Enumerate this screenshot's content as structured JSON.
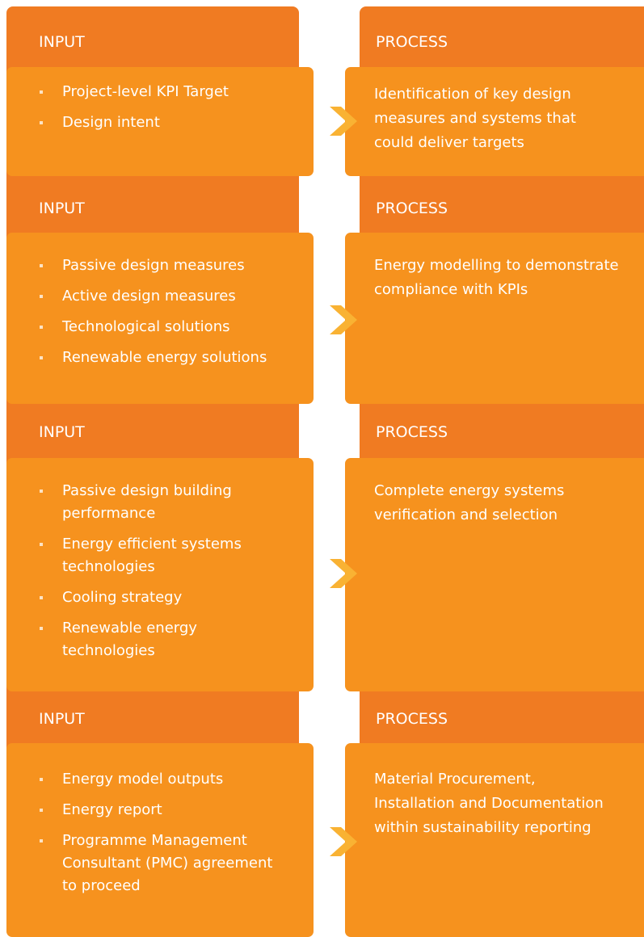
{
  "rows": [
    {
      "input_label": "INPUT",
      "input_items": [
        "Project-level KPI Target",
        "Design intent"
      ],
      "process_label": "PROCESS",
      "process_lines": [
        "Identification of key design",
        "measures and systems that",
        "could deliver targets"
      ]
    },
    {
      "input_label": "INPUT",
      "input_items": [
        "Passive design measures",
        "Active design measures",
        "Technological solutions",
        "Renewable energy solutions"
      ],
      "process_label": "PROCESS",
      "process_lines": [
        "Energy modelling to demonstrate",
        "compliance with KPIs"
      ]
    },
    {
      "input_label": "INPUT",
      "input_items": [
        "Passive design building performance",
        "Energy efficient systems technologies",
        "Cooling strategy",
        "Renewable energy technologies"
      ],
      "process_label": "PROCESS",
      "process_lines": [
        "Complete energy systems",
        "verification and selection"
      ]
    },
    {
      "input_label": "INPUT",
      "input_items": [
        "Energy model outputs",
        "Energy report",
        "Programme Management Consultant (PMC) agreement to proceed"
      ],
      "process_label": "PROCESS",
      "process_lines": [
        "Material Procurement,",
        "Installation and Documentation",
        "within sustainability reporting"
      ]
    }
  ]
}
